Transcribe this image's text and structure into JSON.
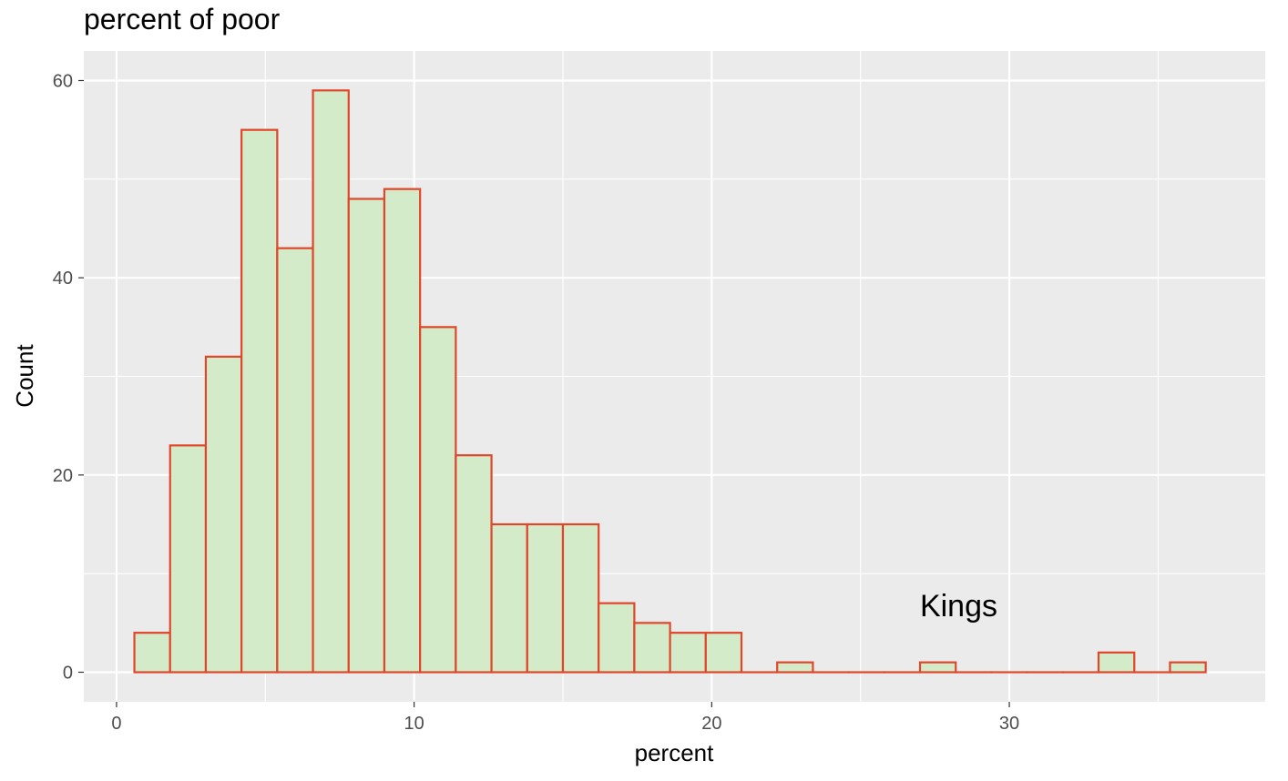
{
  "chart_data": {
    "type": "bar",
    "title": "percent of poor",
    "xlabel": "percent",
    "ylabel": "Count",
    "xlim": [
      -1.1,
      38.6
    ],
    "ylim": [
      -3.0,
      63.0
    ],
    "x_ticks": [
      0,
      10,
      20,
      30
    ],
    "y_ticks": [
      0,
      20,
      40,
      60
    ],
    "x_tick_labels": [
      "0",
      "10",
      "20",
      "30"
    ],
    "y_tick_labels": [
      "0",
      "20",
      "40",
      "60"
    ],
    "bin_edges": [
      0.6,
      1.8,
      3.0,
      4.2,
      5.4,
      6.6,
      7.8,
      9.0,
      10.2,
      11.4,
      12.6,
      13.8,
      15.0,
      16.2,
      17.4,
      18.6,
      19.8,
      21.0,
      22.2,
      23.4,
      24.6,
      25.8,
      27.0,
      28.2,
      29.4,
      30.6,
      31.8,
      33.0,
      34.2,
      35.4,
      36.6
    ],
    "counts": [
      4,
      23,
      32,
      55,
      43,
      59,
      48,
      49,
      35,
      22,
      15,
      15,
      15,
      7,
      5,
      4,
      4,
      0,
      1,
      0,
      0,
      0,
      1,
      0,
      0,
      0,
      0,
      2,
      0,
      1
    ],
    "annotations": [
      {
        "text": "Kings",
        "x": 28.3,
        "y": 6.8
      }
    ],
    "grid": true,
    "colors": {
      "panel": "#ebebeb",
      "grid": "#ffffff",
      "bar_fill": "#d4ebca",
      "bar_stroke": "#e0462a",
      "tick": "#4d4d4d"
    }
  }
}
